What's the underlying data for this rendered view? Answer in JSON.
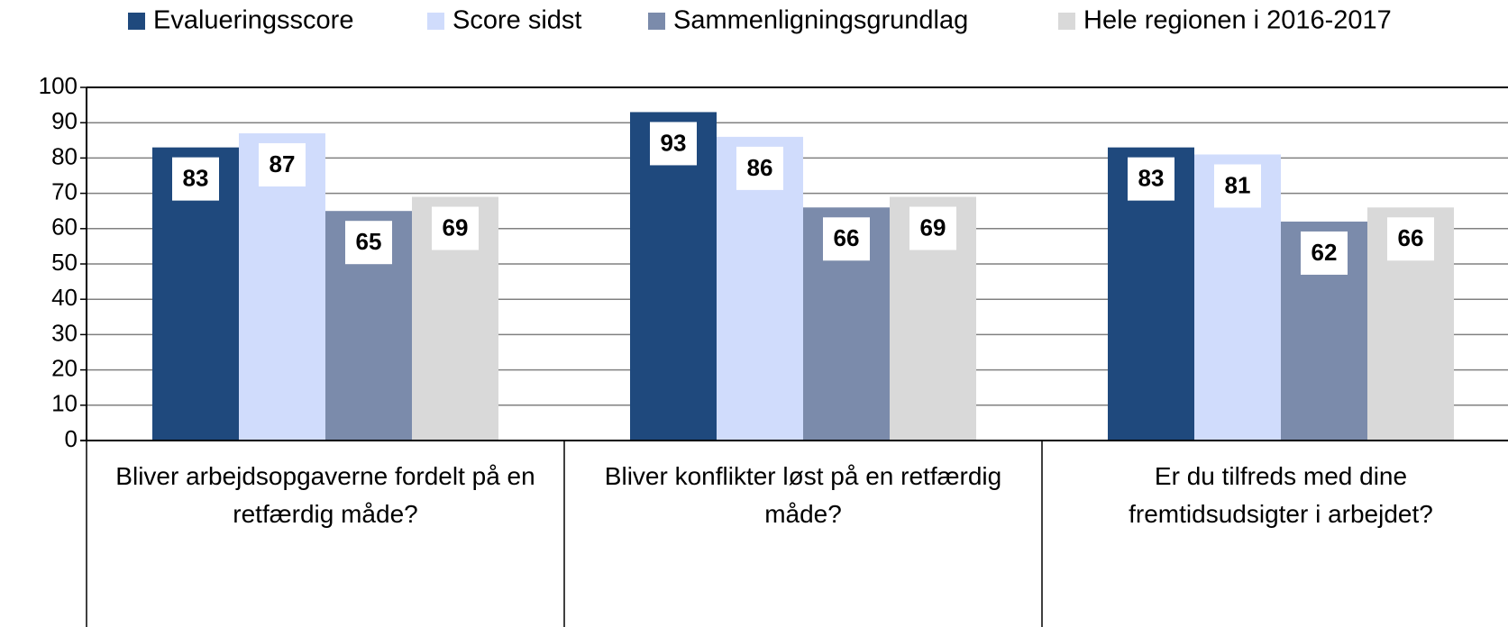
{
  "chart_data": {
    "type": "bar",
    "categories": [
      "Bliver arbejdsopgaverne fordelt på en retfærdig måde?",
      "Bliver konflikter løst på en retfærdig måde?",
      "Er du tilfreds med dine fremtidsudsigter i arbejdet?"
    ],
    "series": [
      {
        "name": "Evalueringsscore",
        "color": "#1f497d",
        "values": [
          83,
          93,
          83
        ]
      },
      {
        "name": "Score sidst",
        "color": "#d0dcfc",
        "values": [
          87,
          86,
          81
        ]
      },
      {
        "name": "Sammenligningsgrundlag",
        "color": "#7b8bab",
        "values": [
          65,
          66,
          62
        ]
      },
      {
        "name": "Hele regionen i 2016-2017",
        "color": "#d9d9d9",
        "values": [
          69,
          69,
          66
        ]
      }
    ],
    "ylim": [
      0,
      100
    ],
    "yticks": [
      0,
      10,
      20,
      30,
      40,
      50,
      60,
      70,
      80,
      90,
      100
    ],
    "grid": true,
    "legend": "top"
  }
}
